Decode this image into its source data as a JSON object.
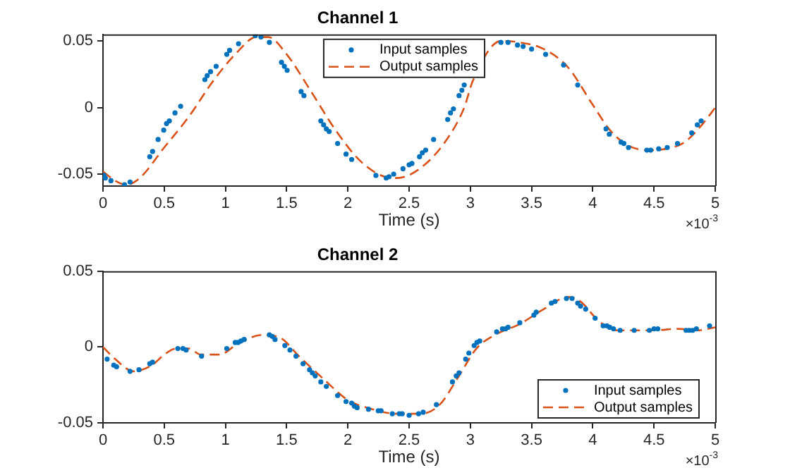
{
  "chart_data": [
    {
      "type": "line",
      "title": "Channel 1",
      "xlabel": "Time (s)",
      "xlim": [
        0,
        5
      ],
      "xticks": [
        0,
        0.5,
        1,
        1.5,
        2,
        2.5,
        3,
        3.5,
        4,
        4.5,
        5
      ],
      "ylim": [
        -0.059,
        0.055
      ],
      "yticks": [
        -0.05,
        0,
        0.05
      ],
      "legend": "top",
      "annotations": [
        "×10$^{-3}$"
      ],
      "series": [
        {
          "name": "Input samples",
          "type": "scatter",
          "marker": "circle",
          "color": "#0072bd",
          "x": [
            0.008,
            0.019,
            0.065,
            0.176,
            0.221,
            0.382,
            0.405,
            0.45,
            0.496,
            0.519,
            0.542,
            0.588,
            0.634,
            0.832,
            0.851,
            0.878,
            0.924,
            1.011,
            1.034,
            1.107,
            1.244,
            1.29,
            1.359,
            1.458,
            1.481,
            1.504,
            1.618,
            1.641,
            1.779,
            1.802,
            1.824,
            1.847,
            1.916,
            1.985,
            2.031,
            2.229,
            2.313,
            2.336,
            2.374,
            2.45,
            2.5,
            2.523,
            2.585,
            2.608,
            2.635,
            2.7,
            2.815,
            2.838,
            2.862,
            2.908,
            2.931,
            2.95,
            3.25,
            3.308,
            3.385,
            3.431,
            3.5,
            3.615,
            3.762,
            3.877,
            4.108,
            4.135,
            4.231,
            4.254,
            4.292,
            4.442,
            4.473,
            4.538,
            4.608,
            4.692,
            4.808,
            4.854,
            4.885
          ],
          "values": [
            -0.051,
            -0.053,
            -0.055,
            -0.058,
            -0.056,
            -0.037,
            -0.033,
            -0.024,
            -0.017,
            -0.012,
            -0.01,
            -0.004,
            0.001,
            0.021,
            0.024,
            0.027,
            0.031,
            0.04,
            0.043,
            0.048,
            0.054,
            0.053,
            0.049,
            0.034,
            0.031,
            0.028,
            0.012,
            0.009,
            -0.01,
            -0.013,
            -0.016,
            -0.018,
            -0.027,
            -0.035,
            -0.039,
            -0.051,
            -0.053,
            -0.052,
            -0.05,
            -0.046,
            -0.043,
            -0.042,
            -0.037,
            -0.034,
            -0.032,
            -0.024,
            -0.009,
            -0.004,
            -0.001,
            0.009,
            0.013,
            0.017,
            0.049,
            0.049,
            0.047,
            0.046,
            0.044,
            0.04,
            0.032,
            0.017,
            -0.016,
            -0.02,
            -0.026,
            -0.027,
            -0.03,
            -0.032,
            -0.032,
            -0.031,
            -0.03,
            -0.027,
            -0.019,
            -0.013,
            -0.01
          ]
        },
        {
          "name": "Output samples",
          "type": "line",
          "marker": "none",
          "line_style": "dashed",
          "color": "#d95319",
          "x": [
            0,
            0.1,
            0.19,
            0.3,
            0.5,
            0.7,
            0.9,
            1.1,
            1.25,
            1.35,
            1.5,
            1.7,
            1.9,
            2.1,
            2.3,
            2.4,
            2.6,
            2.8,
            2.95,
            3.02,
            3.25,
            3.4,
            3.6,
            3.8,
            4,
            4.15,
            4.3,
            4.45,
            4.6,
            4.75,
            4.9,
            5
          ],
          "values": [
            -0.048,
            -0.055,
            -0.058,
            -0.053,
            -0.03,
            -0.007,
            0.02,
            0.042,
            0.053,
            0.053,
            0.04,
            0.012,
            -0.017,
            -0.04,
            -0.052,
            -0.053,
            -0.045,
            -0.025,
            0,
            0.02,
            0.05,
            0.049,
            0.044,
            0.03,
            0.002,
            -0.018,
            -0.029,
            -0.032,
            -0.031,
            -0.026,
            -0.012,
            0
          ]
        }
      ]
    },
    {
      "type": "line",
      "title": "Channel 2",
      "xlabel": "Time (s)",
      "xlim": [
        0,
        5
      ],
      "xticks": [
        0,
        0.5,
        1,
        1.5,
        2,
        2.5,
        3,
        3.5,
        4,
        4.5,
        5
      ],
      "ylim": [
        -0.05,
        0.05
      ],
      "yticks": [
        -0.05,
        0,
        0.05
      ],
      "legend": "bottom right",
      "annotations": [
        "×10$^{-3}$"
      ],
      "series": [
        {
          "name": "Input samples",
          "type": "scatter",
          "marker": "circle",
          "color": "#0072bd",
          "x": [
            0.034,
            0.088,
            0.111,
            0.221,
            0.294,
            0.382,
            0.405,
            0.611,
            0.653,
            0.679,
            0.805,
            1.011,
            1.08,
            1.103,
            1.126,
            1.153,
            1.359,
            1.382,
            1.405,
            1.485,
            1.527,
            1.576,
            1.634,
            1.687,
            1.71,
            1.733,
            1.779,
            1.824,
            1.916,
            1.985,
            2.031,
            2.053,
            2.076,
            2.168,
            2.248,
            2.271,
            2.363,
            2.42,
            2.443,
            2.5,
            2.577,
            2.615,
            2.723,
            2.854,
            2.885,
            2.908,
            2.962,
            2.988,
            3.031,
            3.054,
            3.077,
            3.215,
            3.262,
            3.288,
            3.308,
            3.404,
            3.519,
            3.538,
            3.662,
            3.692,
            3.785,
            3.831,
            3.877,
            3.9,
            3.942,
            4.019,
            4.085,
            4.115,
            4.138,
            4.169,
            4.223,
            4.338,
            4.462,
            4.5,
            4.531,
            4.762,
            4.788,
            4.815,
            4.846,
            4.954
          ],
          "values": [
            -0.008,
            -0.012,
            -0.013,
            -0.016,
            -0.015,
            -0.011,
            -0.01,
            -0.001,
            -0.001,
            -0.002,
            -0.006,
            -0.001,
            0.003,
            0.003,
            0.004,
            0.005,
            0.008,
            0.007,
            0.005,
            0.001,
            -0.002,
            -0.006,
            -0.011,
            -0.015,
            -0.017,
            -0.019,
            -0.023,
            -0.026,
            -0.032,
            -0.036,
            -0.037,
            -0.039,
            -0.04,
            -0.041,
            -0.042,
            -0.042,
            -0.044,
            -0.044,
            -0.044,
            -0.045,
            -0.044,
            -0.043,
            -0.038,
            -0.023,
            -0.019,
            -0.017,
            -0.008,
            -0.004,
            0.001,
            0.003,
            0.004,
            0.01,
            0.012,
            0.012,
            0.013,
            0.016,
            0.021,
            0.023,
            0.029,
            0.03,
            0.032,
            0.032,
            0.029,
            0.027,
            0.025,
            0.019,
            0.014,
            0.014,
            0.013,
            0.012,
            0.011,
            0.011,
            0.011,
            0.012,
            0.012,
            0.011,
            0.011,
            0.011,
            0.012,
            0.014
          ]
        },
        {
          "name": "Output samples",
          "type": "line",
          "marker": "none",
          "line_style": "dashed",
          "color": "#d95319",
          "x": [
            0,
            0.1,
            0.25,
            0.4,
            0.5,
            0.6,
            0.7,
            0.8,
            0.95,
            1.1,
            1.3,
            1.45,
            1.6,
            1.8,
            2,
            2.2,
            2.4,
            2.6,
            2.75,
            2.9,
            3.05,
            3.2,
            3.4,
            3.6,
            3.8,
            3.9,
            4.05,
            4.2,
            4.5,
            4.7,
            4.85,
            5
          ],
          "values": [
            0,
            -0.008,
            -0.016,
            -0.012,
            -0.005,
            -0.001,
            -0.001,
            -0.005,
            -0.005,
            0.002,
            0.008,
            0.006,
            -0.006,
            -0.021,
            -0.035,
            -0.041,
            -0.044,
            -0.044,
            -0.038,
            -0.02,
            -0.001,
            0.008,
            0.015,
            0.025,
            0.033,
            0.03,
            0.017,
            0.011,
            0.011,
            0.012,
            0.011,
            0.013
          ]
        }
      ]
    }
  ]
}
